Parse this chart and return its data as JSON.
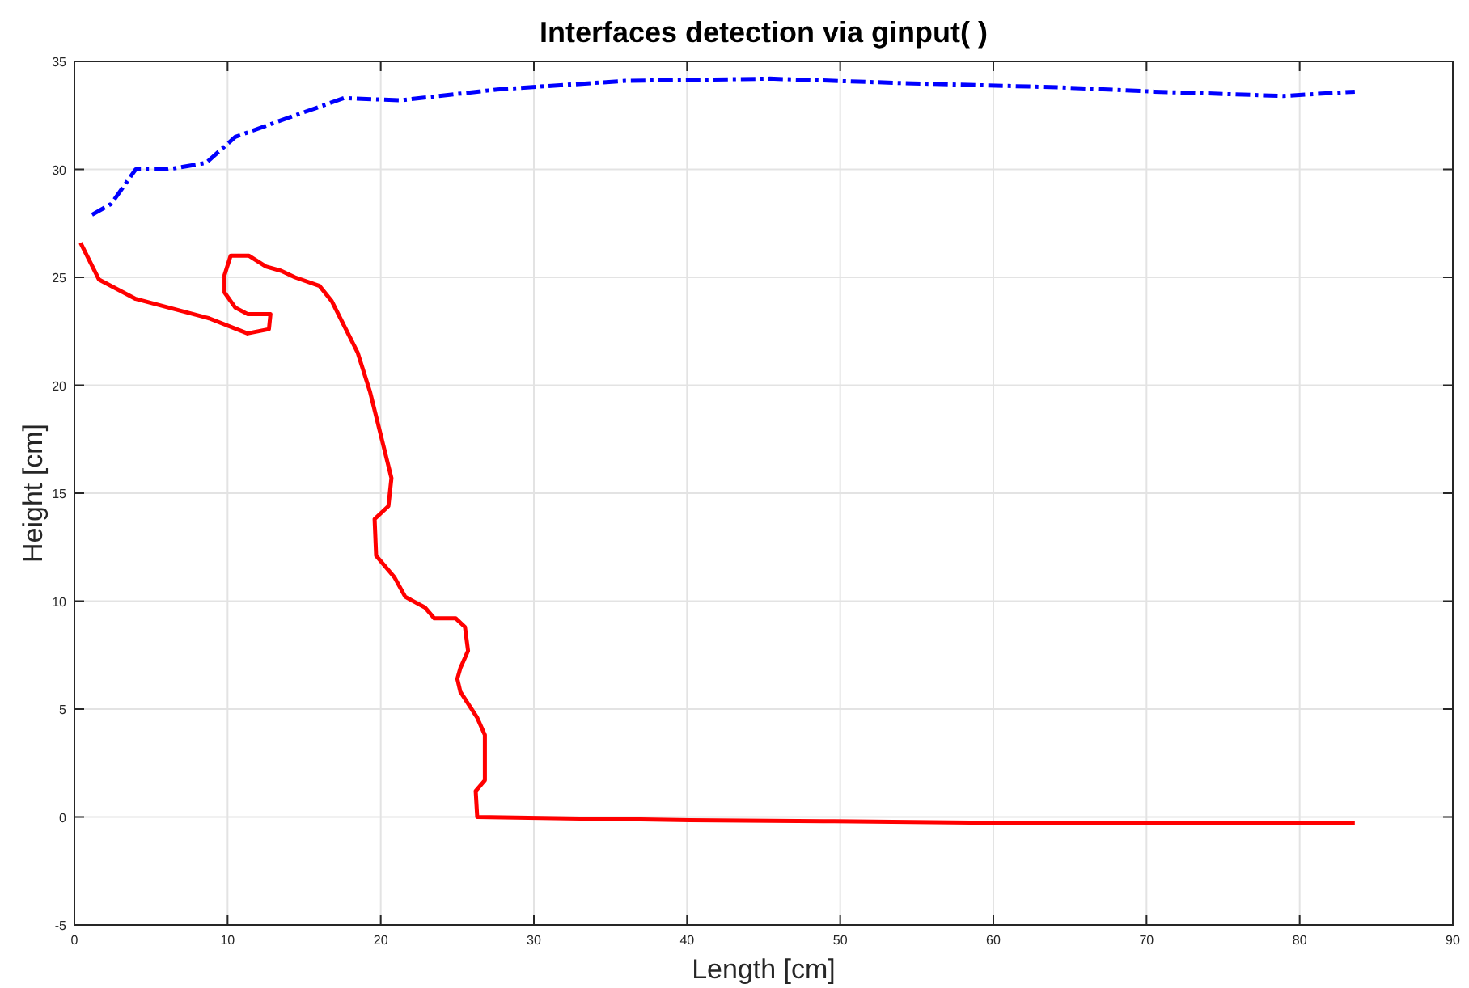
{
  "chart_data": {
    "type": "line",
    "title": "Interfaces detection via ginput( )",
    "xlabel": "Length [cm]",
    "ylabel": "Height [cm]",
    "xlim": [
      0,
      90
    ],
    "ylim": [
      -5,
      35
    ],
    "xticks": [
      0,
      10,
      20,
      30,
      40,
      50,
      60,
      70,
      80,
      90
    ],
    "yticks": [
      -5,
      0,
      5,
      10,
      15,
      20,
      25,
      30,
      35
    ],
    "grid": true,
    "series": [
      {
        "color": "#0000ff",
        "line_style": "dashed",
        "x": [
          1.15,
          2.4,
          4.0,
          6.1,
          8.6,
          10.5,
          14.0,
          17.6,
          21.3,
          27.6,
          36,
          45.4,
          53.8,
          64.2,
          70.5,
          78.9,
          83.6
        ],
        "values": [
          27.9,
          28.4,
          30.0,
          30.0,
          30.3,
          31.5,
          32.4,
          33.3,
          33.2,
          33.7,
          34.1,
          34.2,
          34.0,
          33.8,
          33.6,
          33.4,
          33.6
        ]
      },
      {
        "color": "#ff0000",
        "line_style": "solid",
        "x": [
          0.4,
          1.6,
          4.0,
          8.8,
          11.3,
          12.7,
          12.8,
          11.3,
          10.5,
          9.8,
          9.8,
          10.2,
          11.4,
          12.5,
          13.5,
          14.4,
          16.0,
          16.8,
          18.5,
          19.3,
          20.7,
          20.5,
          19.6,
          19.7,
          20.9,
          21.6,
          22.9,
          23.5,
          24.9,
          25.5,
          25.7,
          25.2,
          25.0,
          25.2,
          26.3,
          26.8,
          26.8,
          26.2,
          26.3,
          40.2,
          49.6,
          63.2,
          76.8,
          83.6
        ],
        "values": [
          26.6,
          24.9,
          24.0,
          23.1,
          22.4,
          22.6,
          23.3,
          23.3,
          23.6,
          24.3,
          25.1,
          26.0,
          26.0,
          25.5,
          25.3,
          25.0,
          24.6,
          23.9,
          21.5,
          19.7,
          15.7,
          14.4,
          13.8,
          12.1,
          11.1,
          10.2,
          9.7,
          9.2,
          9.2,
          8.8,
          7.7,
          6.9,
          6.4,
          5.8,
          4.6,
          3.8,
          1.7,
          1.2,
          0.0,
          -0.15,
          -0.2,
          -0.3,
          -0.3,
          -0.3
        ]
      }
    ]
  }
}
